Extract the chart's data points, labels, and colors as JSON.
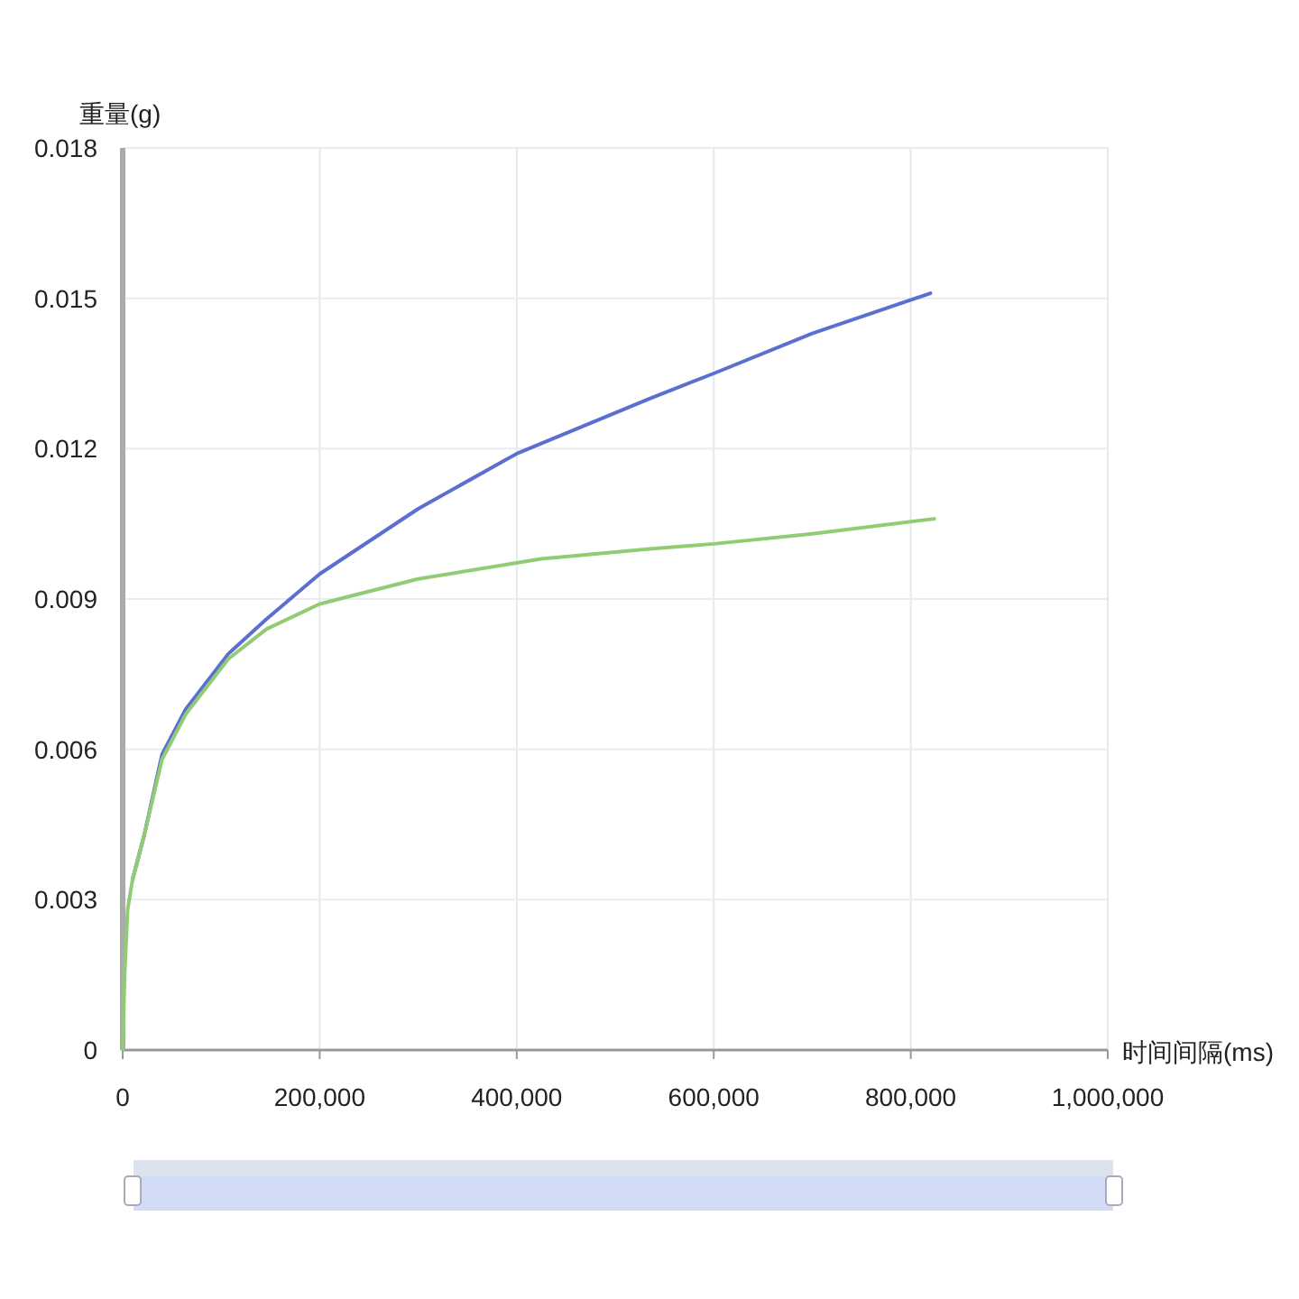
{
  "chart_data": {
    "type": "line",
    "xlabel": "时间间隔(ms)",
    "ylabel": "重量(g)",
    "xlim": [
      0,
      1000000
    ],
    "ylim": [
      0,
      0.018
    ],
    "xticks": [
      0,
      {
        "value": 200000,
        "label": "200,000"
      },
      {
        "value": 400000,
        "label": "400,000"
      },
      {
        "value": 600000,
        "label": "600,000"
      },
      {
        "value": 800000,
        "label": "800,000"
      },
      {
        "value": 1000000,
        "label": "1,000,000"
      }
    ],
    "yticks": [
      0,
      0.003,
      0.006,
      0.009,
      0.012,
      0.015,
      0.018
    ],
    "grid": true,
    "series": [
      {
        "color": "#5b6fd1",
        "x": [
          10000,
          22000,
          40000,
          64000,
          107000,
          146000,
          200000,
          300000,
          400000,
          535000,
          600000,
          700000,
          820000
        ],
        "values": [
          0.0034,
          0.0043,
          0.0059,
          0.0068,
          0.0079,
          0.0086,
          0.0095,
          0.0108,
          0.0119,
          0.013,
          0.0135,
          0.0143,
          0.0151
        ]
      },
      {
        "color": "#91cc75",
        "x": [
          0,
          2000,
          5000,
          10000,
          22000,
          40000,
          64000,
          107000,
          146000,
          200000,
          300000,
          425000,
          535000,
          600000,
          700000,
          824000
        ],
        "values": [
          0,
          0.0015,
          0.0028,
          0.0034,
          0.0043,
          0.0058,
          0.0067,
          0.0078,
          0.0084,
          0.0089,
          0.0094,
          0.0098,
          0.01,
          0.0101,
          0.0103,
          0.0106
        ]
      }
    ]
  }
}
